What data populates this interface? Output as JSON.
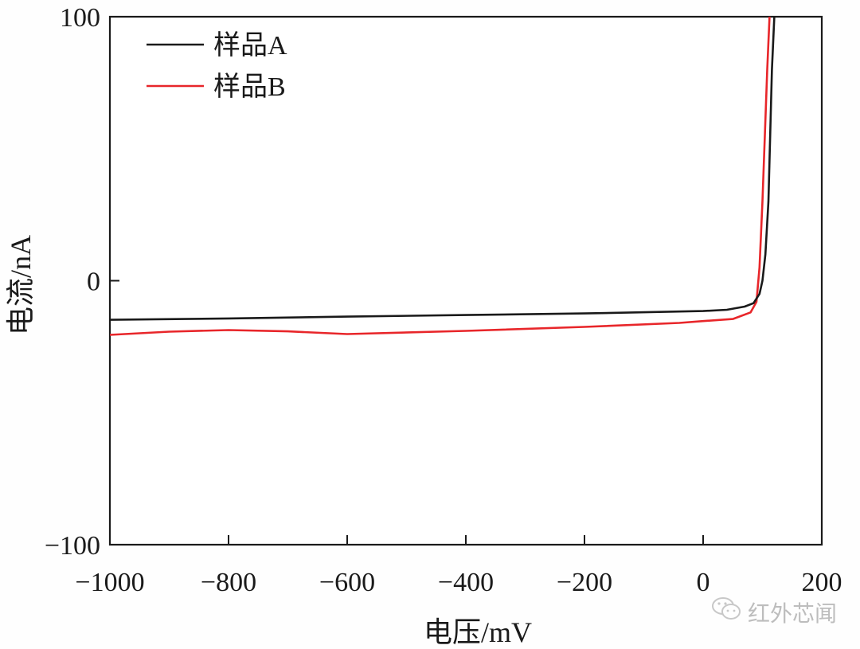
{
  "chart_data": {
    "type": "line",
    "title": "",
    "xlabel": "电压/mV",
    "ylabel": "电流/nA",
    "xlim": [
      -1000,
      200
    ],
    "ylim": [
      -100,
      100
    ],
    "xticks": [
      -1000,
      -800,
      -600,
      -400,
      -200,
      0,
      200
    ],
    "yticks": [
      -100,
      0,
      100
    ],
    "xtick_labels": [
      "−1000",
      "−800",
      "−600",
      "−400",
      "−200",
      "0",
      "200"
    ],
    "ytick_labels": [
      "−100",
      "0",
      "100"
    ],
    "grid": false,
    "legend_position": "upper left",
    "series": [
      {
        "name": "样品A",
        "color": "#1a1a1a",
        "x": [
          -1000,
          -800,
          -600,
          -400,
          -200,
          0,
          40,
          70,
          85,
          95,
          100,
          105,
          110,
          113,
          116,
          120
        ],
        "y": [
          -14.8,
          -14.3,
          -13.6,
          -13.0,
          -12.4,
          -11.5,
          -11.0,
          -9.8,
          -8.5,
          -5.0,
          0,
          10,
          30,
          55,
          80,
          100
        ]
      },
      {
        "name": "样品B",
        "color": "#e8262a",
        "x": [
          -1000,
          -900,
          -800,
          -700,
          -600,
          -400,
          -200,
          -40,
          0,
          50,
          80,
          90,
          95,
          100,
          104,
          108,
          112
        ],
        "y": [
          -20.5,
          -19.3,
          -18.7,
          -19.2,
          -20.2,
          -19.0,
          -17.5,
          -16.0,
          -15.3,
          -14.5,
          -12.0,
          -8.0,
          5,
          30,
          55,
          80,
          100
        ]
      }
    ]
  },
  "watermark": {
    "icon": "wechat-icon",
    "text": "红外芯闻"
  }
}
